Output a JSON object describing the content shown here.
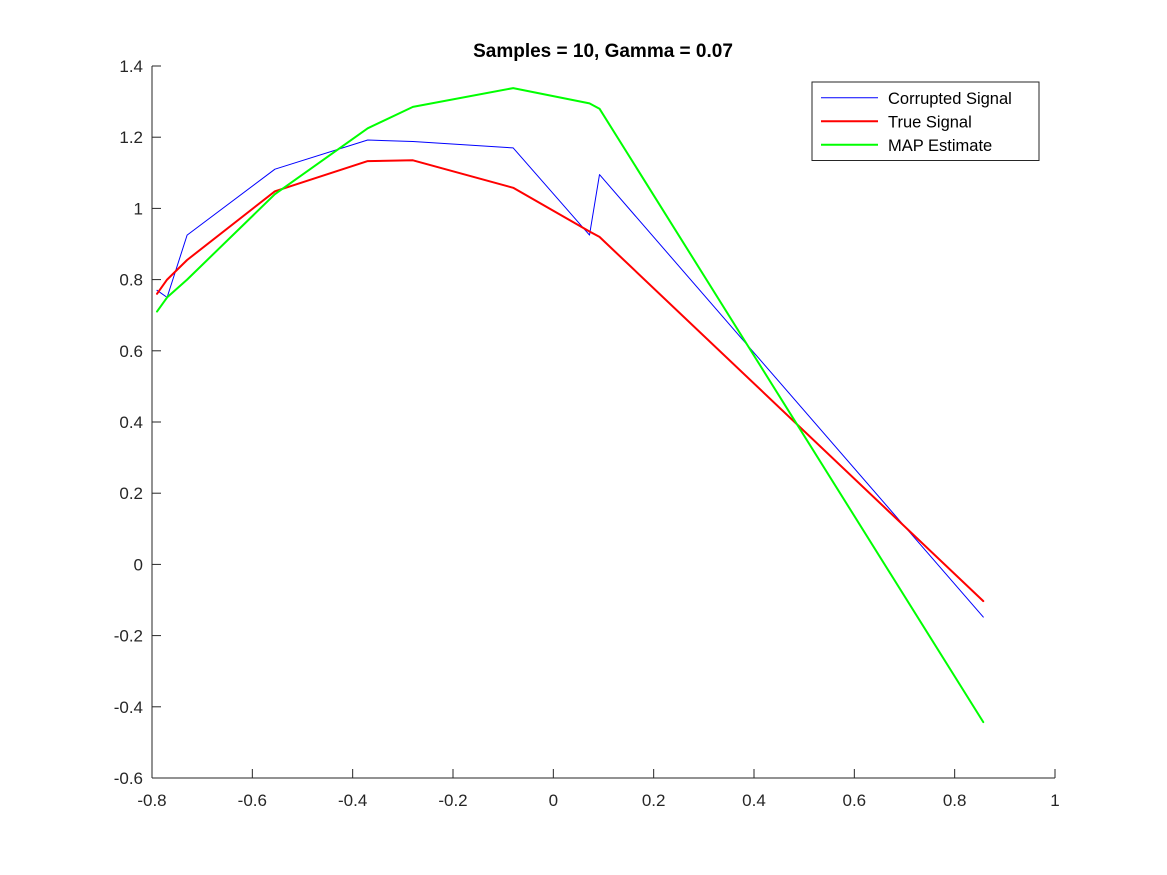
{
  "chart_data": {
    "type": "line",
    "title": "Samples = 10, Gamma = 0.07",
    "xlabel": "",
    "ylabel": "",
    "xlim": [
      -0.8,
      1
    ],
    "ylim": [
      -0.6,
      1.4
    ],
    "xticks": [
      -0.8,
      -0.6,
      -0.4,
      -0.2,
      0,
      0.2,
      0.4,
      0.6,
      0.8,
      1
    ],
    "yticks": [
      -0.6,
      -0.4,
      -0.2,
      0,
      0.2,
      0.4,
      0.6,
      0.8,
      1,
      1.2,
      1.4
    ],
    "xtick_labels": [
      "-0.8",
      "-0.6",
      "-0.4",
      "-0.2",
      "0",
      "0.2",
      "0.4",
      "0.6",
      "0.8",
      "1"
    ],
    "ytick_labels": [
      "-0.6",
      "-0.4",
      "-0.2",
      "0",
      "0.2",
      "0.4",
      "0.6",
      "0.8",
      "1",
      "1.2",
      "1.4"
    ],
    "grid": false,
    "legend": "top-right",
    "series": [
      {
        "name": "Corrupted Signal",
        "color": "#0000ff",
        "line_width": 1,
        "x": [
          -0.79,
          -0.77,
          -0.73,
          -0.555,
          -0.37,
          -0.28,
          -0.08,
          0.072,
          0.092,
          0.857
        ],
        "y": [
          0.77,
          0.75,
          0.925,
          1.11,
          1.192,
          1.188,
          1.17,
          0.925,
          1.095,
          -0.148
        ]
      },
      {
        "name": "True Signal",
        "color": "#ff0000",
        "line_width": 2,
        "x": [
          -0.79,
          -0.77,
          -0.73,
          -0.555,
          -0.37,
          -0.28,
          -0.08,
          0.072,
          0.092,
          0.857
        ],
        "y": [
          0.76,
          0.8,
          0.855,
          1.048,
          1.133,
          1.135,
          1.058,
          0.935,
          0.92,
          -0.103
        ]
      },
      {
        "name": "MAP Estimate",
        "color": "#00ff00",
        "line_width": 2,
        "x": [
          -0.79,
          -0.77,
          -0.73,
          -0.555,
          -0.37,
          -0.28,
          -0.08,
          0.072,
          0.092,
          0.857
        ],
        "y": [
          0.71,
          0.75,
          0.8,
          1.04,
          1.225,
          1.285,
          1.338,
          1.295,
          1.28,
          -0.443
        ]
      }
    ]
  }
}
